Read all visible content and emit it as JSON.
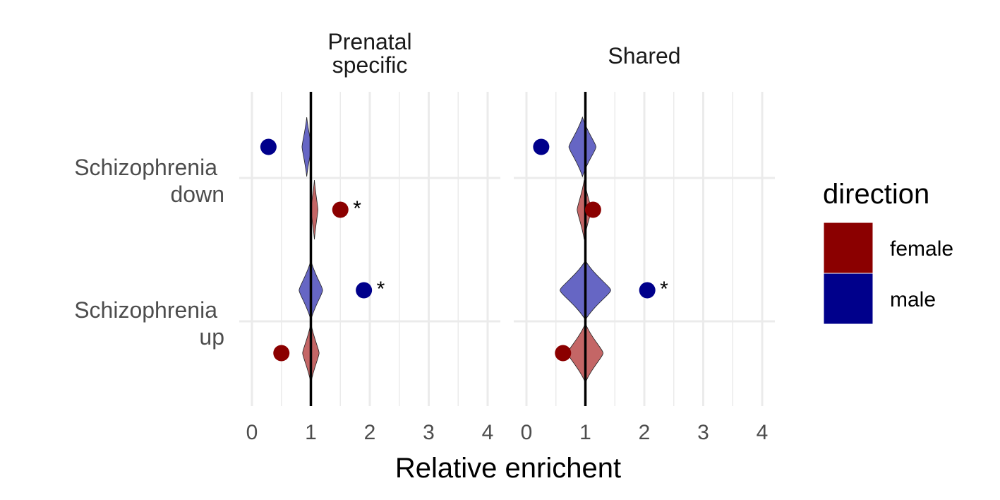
{
  "chart_data": {
    "type": "scatter",
    "xlabel": "Relative enrichent",
    "xlim": [
      0,
      4
    ],
    "xticks": [
      "0",
      "1",
      "2",
      "3",
      "4"
    ],
    "reference_line_x": 1,
    "facets": [
      {
        "title_lines": [
          "Prenatal",
          "specific"
        ]
      },
      {
        "title_lines": [
          "Shared"
        ]
      }
    ],
    "categories": [
      {
        "label_lines": [
          "Schizophrenia",
          "down"
        ]
      },
      {
        "label_lines": [
          "Schizophrenia",
          "up"
        ]
      }
    ],
    "legend": {
      "title": "direction",
      "position": "right",
      "entries": [
        {
          "name": "female",
          "color": "#8B0000"
        },
        {
          "name": "male",
          "color": "#00008B"
        }
      ]
    },
    "colors": {
      "female": "#8B0000",
      "male": "#00008B",
      "female_violin": "#C46666",
      "male_violin": "#6666C4"
    },
    "points": [
      {
        "facet": 0,
        "category": 0,
        "direction": "male",
        "x": 0.28,
        "violin_center": 0.93,
        "violin_halfwidth": 0.08,
        "significant": false
      },
      {
        "facet": 0,
        "category": 0,
        "direction": "female",
        "x": 1.5,
        "violin_center": 1.06,
        "violin_halfwidth": 0.06,
        "significant": true,
        "marker": "*"
      },
      {
        "facet": 0,
        "category": 1,
        "direction": "male",
        "x": 1.9,
        "violin_center": 1.0,
        "violin_halfwidth": 0.2,
        "significant": true,
        "marker": "*"
      },
      {
        "facet": 0,
        "category": 1,
        "direction": "female",
        "x": 0.5,
        "violin_center": 1.0,
        "violin_halfwidth": 0.14,
        "significant": false
      },
      {
        "facet": 1,
        "category": 0,
        "direction": "male",
        "x": 0.25,
        "violin_center": 0.95,
        "violin_halfwidth": 0.23,
        "significant": false
      },
      {
        "facet": 1,
        "category": 0,
        "direction": "female",
        "x": 1.13,
        "violin_center": 0.98,
        "violin_halfwidth": 0.12,
        "significant": false
      },
      {
        "facet": 1,
        "category": 1,
        "direction": "male",
        "x": 2.05,
        "violin_center": 1.0,
        "violin_halfwidth": 0.43,
        "significant": true,
        "marker": "*"
      },
      {
        "facet": 1,
        "category": 1,
        "direction": "female",
        "x": 0.62,
        "violin_center": 1.0,
        "violin_halfwidth": 0.3,
        "significant": false
      }
    ]
  }
}
